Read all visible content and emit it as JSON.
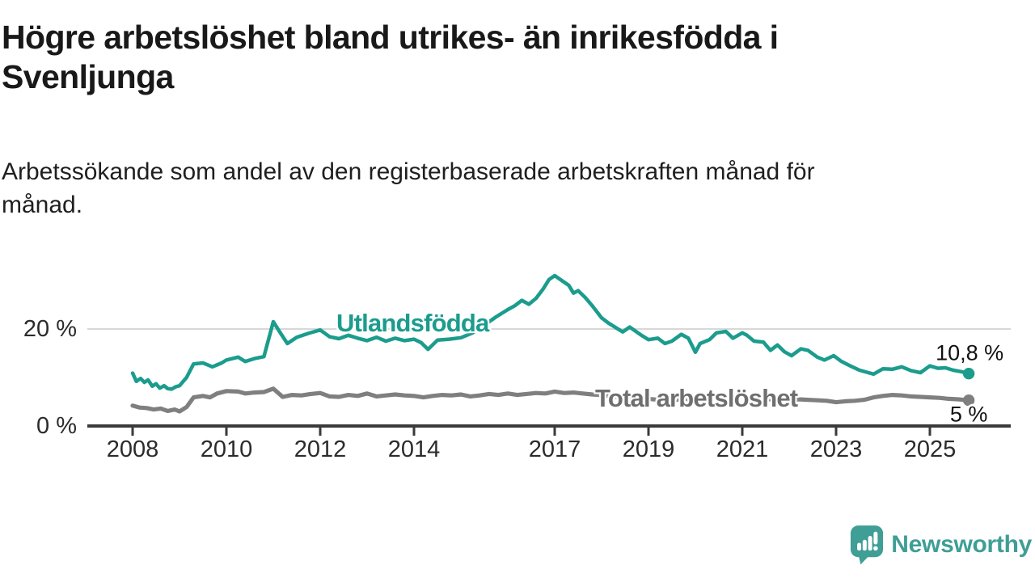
{
  "header": {
    "title": "Högre arbetslöshet bland utrikes- än inrikesfödda i Svenljunga",
    "title_lines": [
      "Högre arbetslöshet bland utrikes- än inrikesfödda i",
      "Svenljunga"
    ],
    "subtitle": "Arbetssökande som andel av den registerbaserade arbetskraften månad för månad.",
    "subtitle_lines": [
      "Arbetssökande som andel av den registerbaserade arbetskraften månad för",
      "månad."
    ]
  },
  "footer": {
    "brand": "Newsworthy",
    "logo_icon": "speech-bubble-bar-chart-icon",
    "brand_color": "#3f9e95"
  },
  "colors": {
    "series_foreign_born": "#1b9c8d",
    "series_total": "#7f7f7f",
    "series_total_label": "#6f6f6f",
    "axis": "#3a3a3a",
    "grid": "#d8d8d8",
    "tick_text": "#2b2b2b",
    "text": "#191919"
  },
  "chart_data": {
    "type": "line",
    "title": "Högre arbetslöshet bland utrikes- än inrikesfödda i Svenljunga",
    "subtitle": "Arbetssökande som andel av den registerbaserade arbetskraften månad för månad.",
    "unit": "%",
    "grid": "horizontal-20-only",
    "legend_position": "inline-labels",
    "x_axis": {
      "range": [
        2007.03,
        2026.72
      ],
      "ticks": [
        2008,
        2010,
        2012,
        2014,
        2017,
        2019,
        2021,
        2023,
        2025
      ]
    },
    "y_axis": {
      "range": [
        0,
        33
      ],
      "ticks": [
        {
          "value": 0,
          "label": "0 %"
        },
        {
          "value": 20,
          "label": "20 %"
        }
      ]
    },
    "series": [
      {
        "name": "Utlandsfödda",
        "color": "#1b9c8d",
        "end_value": 10.8,
        "end_label": "10,8 %",
        "label_anchor": {
          "year": 2013.97,
          "value": 21.2
        },
        "points": [
          [
            2008.0,
            10.9
          ],
          [
            2008.08,
            9.2
          ],
          [
            2008.17,
            9.8
          ],
          [
            2008.25,
            9.0
          ],
          [
            2008.33,
            9.5
          ],
          [
            2008.42,
            8.2
          ],
          [
            2008.5,
            8.7
          ],
          [
            2008.58,
            7.8
          ],
          [
            2008.67,
            8.3
          ],
          [
            2008.75,
            7.7
          ],
          [
            2008.83,
            7.6
          ],
          [
            2008.92,
            8.1
          ],
          [
            2009.0,
            8.3
          ],
          [
            2009.15,
            10.0
          ],
          [
            2009.3,
            12.8
          ],
          [
            2009.5,
            13.0
          ],
          [
            2009.7,
            12.2
          ],
          [
            2009.9,
            13.0
          ],
          [
            2010.0,
            13.6
          ],
          [
            2010.25,
            14.2
          ],
          [
            2010.4,
            13.3
          ],
          [
            2010.6,
            13.9
          ],
          [
            2010.8,
            14.3
          ],
          [
            2011.0,
            21.5
          ],
          [
            2011.15,
            19.2
          ],
          [
            2011.3,
            17.0
          ],
          [
            2011.5,
            18.3
          ],
          [
            2011.75,
            19.1
          ],
          [
            2012.0,
            19.8
          ],
          [
            2012.2,
            18.4
          ],
          [
            2012.4,
            18.0
          ],
          [
            2012.6,
            18.7
          ],
          [
            2012.8,
            18.1
          ],
          [
            2013.0,
            17.6
          ],
          [
            2013.2,
            18.3
          ],
          [
            2013.4,
            17.5
          ],
          [
            2013.6,
            18.1
          ],
          [
            2013.8,
            17.6
          ],
          [
            2014.0,
            17.9
          ],
          [
            2014.15,
            17.2
          ],
          [
            2014.3,
            15.8
          ],
          [
            2014.5,
            17.7
          ],
          [
            2014.75,
            17.9
          ],
          [
            2015.0,
            18.2
          ],
          [
            2015.25,
            19.2
          ],
          [
            2015.5,
            20.8
          ],
          [
            2015.75,
            22.5
          ],
          [
            2016.0,
            24.0
          ],
          [
            2016.15,
            24.8
          ],
          [
            2016.3,
            25.9
          ],
          [
            2016.45,
            25.1
          ],
          [
            2016.6,
            26.3
          ],
          [
            2016.75,
            28.2
          ],
          [
            2016.88,
            30.2
          ],
          [
            2017.0,
            31.0
          ],
          [
            2017.15,
            30.0
          ],
          [
            2017.3,
            29.0
          ],
          [
            2017.4,
            27.4
          ],
          [
            2017.5,
            27.9
          ],
          [
            2017.65,
            26.5
          ],
          [
            2017.8,
            24.8
          ],
          [
            2018.0,
            22.3
          ],
          [
            2018.15,
            21.2
          ],
          [
            2018.3,
            20.3
          ],
          [
            2018.45,
            19.4
          ],
          [
            2018.6,
            20.4
          ],
          [
            2018.85,
            18.7
          ],
          [
            2019.0,
            17.8
          ],
          [
            2019.2,
            18.1
          ],
          [
            2019.35,
            17.0
          ],
          [
            2019.5,
            17.5
          ],
          [
            2019.7,
            18.9
          ],
          [
            2019.85,
            18.1
          ],
          [
            2020.0,
            15.2
          ],
          [
            2020.1,
            17.0
          ],
          [
            2020.3,
            17.8
          ],
          [
            2020.45,
            19.2
          ],
          [
            2020.65,
            19.5
          ],
          [
            2020.8,
            18.1
          ],
          [
            2021.0,
            19.2
          ],
          [
            2021.1,
            18.7
          ],
          [
            2021.25,
            17.5
          ],
          [
            2021.45,
            17.3
          ],
          [
            2021.6,
            15.6
          ],
          [
            2021.75,
            16.7
          ],
          [
            2021.9,
            15.3
          ],
          [
            2022.05,
            14.5
          ],
          [
            2022.25,
            15.9
          ],
          [
            2022.4,
            15.6
          ],
          [
            2022.6,
            14.2
          ],
          [
            2022.75,
            13.6
          ],
          [
            2022.95,
            14.5
          ],
          [
            2023.1,
            13.4
          ],
          [
            2023.3,
            12.4
          ],
          [
            2023.5,
            11.5
          ],
          [
            2023.8,
            10.7
          ],
          [
            2024.0,
            11.8
          ],
          [
            2024.2,
            11.7
          ],
          [
            2024.4,
            12.2
          ],
          [
            2024.6,
            11.4
          ],
          [
            2024.8,
            11.0
          ],
          [
            2025.0,
            12.4
          ],
          [
            2025.17,
            11.9
          ],
          [
            2025.33,
            12.0
          ],
          [
            2025.5,
            11.5
          ],
          [
            2025.67,
            11.2
          ],
          [
            2025.83,
            10.8
          ]
        ]
      },
      {
        "name": "Total arbetslöshet",
        "color": "#7f7f7f",
        "end_value": 5,
        "end_label": "5 %",
        "label_anchor": {
          "year": 2020.02,
          "value": 5.6
        },
        "points": [
          [
            2008.0,
            4.2
          ],
          [
            2008.15,
            3.8
          ],
          [
            2008.3,
            3.7
          ],
          [
            2008.45,
            3.4
          ],
          [
            2008.6,
            3.6
          ],
          [
            2008.75,
            3.1
          ],
          [
            2008.9,
            3.4
          ],
          [
            2009.0,
            3.0
          ],
          [
            2009.15,
            3.9
          ],
          [
            2009.3,
            5.9
          ],
          [
            2009.5,
            6.2
          ],
          [
            2009.65,
            5.9
          ],
          [
            2009.8,
            6.7
          ],
          [
            2010.0,
            7.2
          ],
          [
            2010.25,
            7.1
          ],
          [
            2010.4,
            6.7
          ],
          [
            2010.6,
            6.9
          ],
          [
            2010.8,
            7.0
          ],
          [
            2011.0,
            7.7
          ],
          [
            2011.2,
            6.0
          ],
          [
            2011.4,
            6.4
          ],
          [
            2011.6,
            6.3
          ],
          [
            2011.8,
            6.6
          ],
          [
            2012.0,
            6.8
          ],
          [
            2012.2,
            6.1
          ],
          [
            2012.4,
            6.0
          ],
          [
            2012.6,
            6.4
          ],
          [
            2012.8,
            6.2
          ],
          [
            2013.0,
            6.7
          ],
          [
            2013.2,
            6.1
          ],
          [
            2013.4,
            6.3
          ],
          [
            2013.6,
            6.5
          ],
          [
            2013.8,
            6.3
          ],
          [
            2014.0,
            6.2
          ],
          [
            2014.2,
            5.9
          ],
          [
            2014.4,
            6.2
          ],
          [
            2014.6,
            6.4
          ],
          [
            2014.8,
            6.3
          ],
          [
            2015.0,
            6.5
          ],
          [
            2015.2,
            6.1
          ],
          [
            2015.4,
            6.3
          ],
          [
            2015.6,
            6.6
          ],
          [
            2015.8,
            6.4
          ],
          [
            2016.0,
            6.7
          ],
          [
            2016.2,
            6.4
          ],
          [
            2016.4,
            6.6
          ],
          [
            2016.6,
            6.8
          ],
          [
            2016.8,
            6.7
          ],
          [
            2017.0,
            7.1
          ],
          [
            2017.2,
            6.8
          ],
          [
            2017.4,
            6.9
          ],
          [
            2017.6,
            6.7
          ],
          [
            2017.8,
            6.5
          ],
          [
            2018.0,
            6.4
          ],
          [
            2018.2,
            6.1
          ],
          [
            2018.4,
            5.9
          ],
          [
            2018.6,
            5.8
          ],
          [
            2018.8,
            5.7
          ],
          [
            2019.0,
            5.6
          ],
          [
            2019.2,
            5.4
          ],
          [
            2019.4,
            5.5
          ],
          [
            2019.6,
            5.4
          ],
          [
            2019.8,
            5.6
          ],
          [
            2020.0,
            5.1
          ],
          [
            2020.2,
            5.9
          ],
          [
            2020.4,
            6.3
          ],
          [
            2020.6,
            6.1
          ],
          [
            2020.8,
            6.0
          ],
          [
            2021.0,
            6.2
          ],
          [
            2021.2,
            5.9
          ],
          [
            2021.4,
            5.6
          ],
          [
            2021.6,
            5.5
          ],
          [
            2021.8,
            5.4
          ],
          [
            2022.0,
            5.2
          ],
          [
            2022.2,
            5.5
          ],
          [
            2022.4,
            5.4
          ],
          [
            2022.6,
            5.3
          ],
          [
            2022.8,
            5.2
          ],
          [
            2023.0,
            4.9
          ],
          [
            2023.2,
            5.1
          ],
          [
            2023.4,
            5.2
          ],
          [
            2023.6,
            5.4
          ],
          [
            2023.8,
            5.9
          ],
          [
            2024.0,
            6.2
          ],
          [
            2024.2,
            6.4
          ],
          [
            2024.4,
            6.3
          ],
          [
            2024.6,
            6.1
          ],
          [
            2024.8,
            6.0
          ],
          [
            2025.0,
            5.9
          ],
          [
            2025.2,
            5.8
          ],
          [
            2025.4,
            5.6
          ],
          [
            2025.6,
            5.5
          ],
          [
            2025.83,
            5.3
          ]
        ]
      }
    ]
  }
}
